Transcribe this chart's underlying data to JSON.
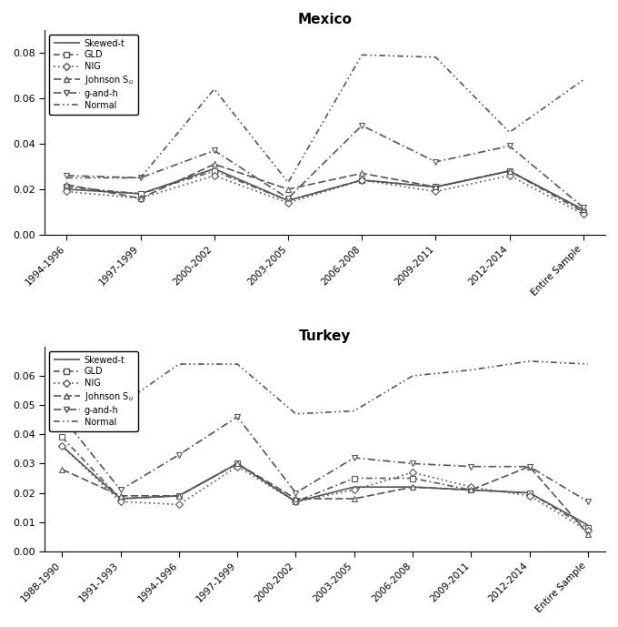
{
  "mexico": {
    "title": "Mexico",
    "x_labels": [
      "1994-1996",
      "1997-1999",
      "2000-2002",
      "2003-2005",
      "2006-2008",
      "2009-2011",
      "2012-2014",
      "Entire Sample"
    ],
    "skewed_t": [
      0.02,
      0.018,
      0.029,
      0.015,
      0.024,
      0.021,
      0.028,
      0.011
    ],
    "gld": [
      0.021,
      0.018,
      0.028,
      0.015,
      0.024,
      0.021,
      0.028,
      0.01
    ],
    "nig": [
      0.019,
      0.016,
      0.026,
      0.014,
      0.024,
      0.019,
      0.026,
      0.009
    ],
    "johnson_su": [
      0.022,
      0.016,
      0.031,
      0.02,
      0.027,
      0.021,
      0.028,
      0.011
    ],
    "g_and_h": [
      0.026,
      0.025,
      0.037,
      0.016,
      0.048,
      0.032,
      0.039,
      0.012
    ],
    "normal": [
      0.025,
      0.025,
      0.064,
      0.023,
      0.079,
      0.078,
      0.045,
      0.068
    ],
    "ylim": [
      0.0,
      0.09
    ],
    "yticks": [
      0.0,
      0.02,
      0.04,
      0.06,
      0.08
    ]
  },
  "turkey": {
    "title": "Turkey",
    "x_labels": [
      "1988-1990",
      "1991-1993",
      "1994-1996",
      "1997-1999",
      "2000-2002",
      "2003-2005",
      "2006-2008",
      "2009-2011",
      "2012-2014",
      "Entire Sample"
    ],
    "skewed_t": [
      0.036,
      0.018,
      0.019,
      0.03,
      0.017,
      0.022,
      0.022,
      0.021,
      0.02,
      0.009
    ],
    "gld": [
      0.039,
      0.018,
      0.019,
      0.03,
      0.017,
      0.025,
      0.025,
      0.021,
      0.02,
      0.008
    ],
    "nig": [
      0.036,
      0.017,
      0.016,
      0.029,
      0.017,
      0.021,
      0.027,
      0.022,
      0.019,
      0.007
    ],
    "johnson_su": [
      0.028,
      0.019,
      0.019,
      0.03,
      0.018,
      0.018,
      0.022,
      0.021,
      0.029,
      0.006
    ],
    "g_and_h": [
      0.046,
      0.021,
      0.033,
      0.046,
      0.02,
      0.032,
      0.03,
      0.029,
      0.029,
      0.017
    ],
    "normal": [
      0.065,
      0.05,
      0.064,
      0.064,
      0.047,
      0.048,
      0.06,
      0.062,
      0.065,
      0.064
    ],
    "ylim": [
      0.0,
      0.07
    ],
    "yticks": [
      0.0,
      0.01,
      0.02,
      0.03,
      0.04,
      0.05,
      0.06
    ]
  },
  "line_styles": {
    "skewed_t": {
      "linestyle": "-",
      "marker": "None",
      "color": "#555555",
      "linewidth": 1.2,
      "markersize": 5
    },
    "gld": {
      "linestyle": "--",
      "marker": "s",
      "color": "#555555",
      "linewidth": 1.2,
      "markersize": 4
    },
    "nig": {
      "linestyle": ":",
      "marker": "D",
      "color": "#555555",
      "linewidth": 1.2,
      "markersize": 4
    },
    "johnson_su": {
      "linestyle": "-.",
      "marker": "^",
      "color": "#555555",
      "linewidth": 1.2,
      "markersize": 5
    },
    "g_and_h": {
      "linestyle": "--",
      "marker": "v",
      "color": "#555555",
      "linewidth": 1.2,
      "markersize": 5
    },
    "normal": {
      "linestyle": "-.",
      "marker": "None",
      "color": "#555555",
      "linewidth": 1.2,
      "markersize": 5
    }
  },
  "legend_labels": {
    "skewed_t": "Skewed-t",
    "gld": "GLD",
    "nig": "NIG",
    "johnson_su": "Johnson S$_u$",
    "g_and_h": "g-and-h",
    "normal": "Normal"
  },
  "background_color": "#ffffff",
  "fig_width": 6.8,
  "fig_height": 6.89
}
